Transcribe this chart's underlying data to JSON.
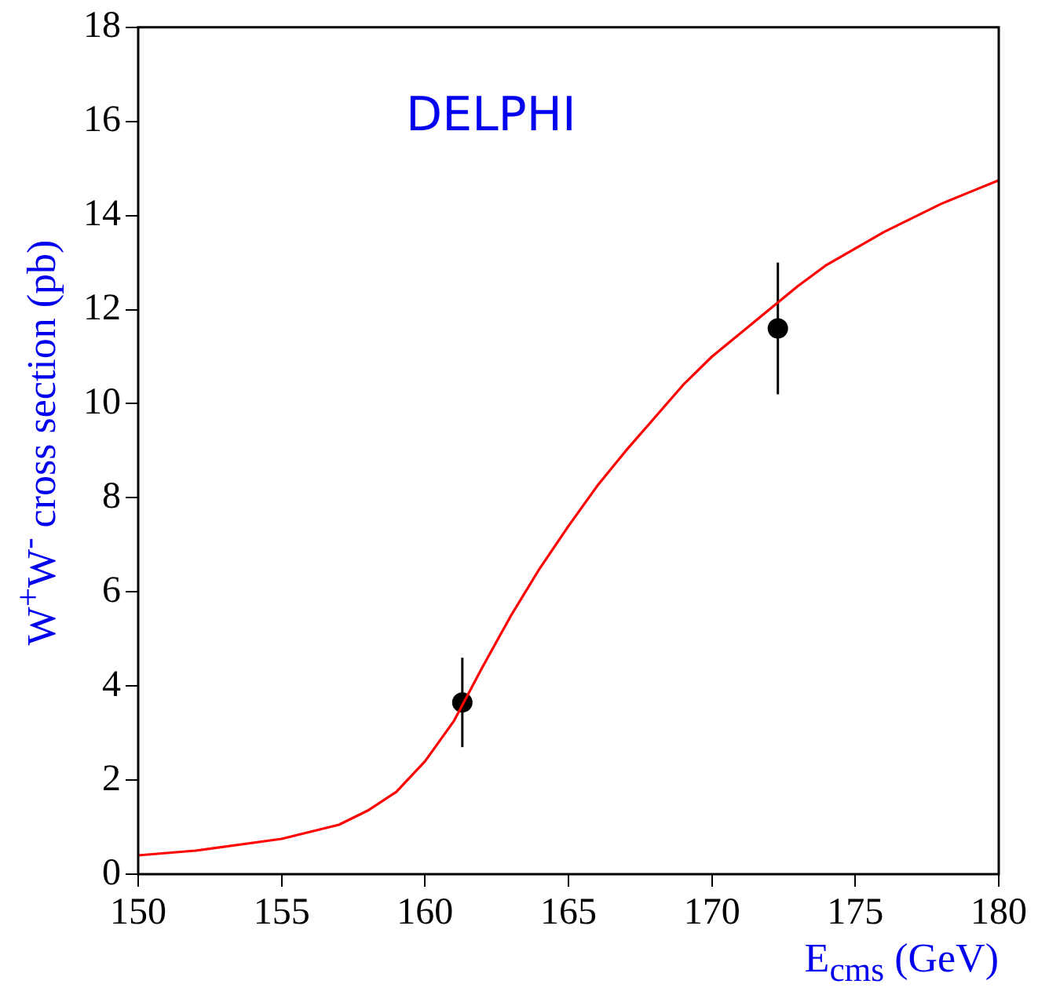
{
  "chart_data": {
    "type": "line",
    "xlabel": "E$_{cms}$ (GeV)",
    "ylabel": "W$^{+}$W$^{-}$ cross section (pb)",
    "annotations": [
      "DELPHI"
    ],
    "xlim": [
      150,
      180
    ],
    "xticks": [
      150,
      155,
      160,
      165,
      170,
      175,
      180
    ],
    "ylim": [
      0,
      18
    ],
    "yticks": [
      0,
      2,
      4,
      6,
      8,
      10,
      12,
      14,
      16,
      18
    ],
    "grid": false,
    "legend": false,
    "series": [
      {
        "color": "#ff0000",
        "marker": "none",
        "line_style": "solid",
        "x": [
          150,
          152,
          155,
          157,
          158,
          159,
          160,
          161,
          162,
          163,
          164,
          165,
          166,
          167,
          168,
          169,
          170,
          171,
          172,
          173,
          174,
          175,
          176,
          177,
          178,
          179,
          180
        ],
        "values": [
          0.4,
          0.5,
          0.75,
          1.05,
          1.35,
          1.75,
          2.4,
          3.25,
          4.4,
          5.5,
          6.5,
          7.4,
          8.25,
          9.0,
          9.7,
          10.4,
          11.0,
          11.5,
          12.0,
          12.5,
          12.95,
          13.3,
          13.65,
          13.95,
          14.25,
          14.5,
          14.75
        ]
      },
      {
        "type": "scatter",
        "color": "#000000",
        "marker": "circle",
        "x": [
          161.3,
          172.3
        ],
        "values": [
          3.65,
          11.6
        ],
        "errors": [
          0.95,
          1.4
        ]
      }
    ]
  }
}
